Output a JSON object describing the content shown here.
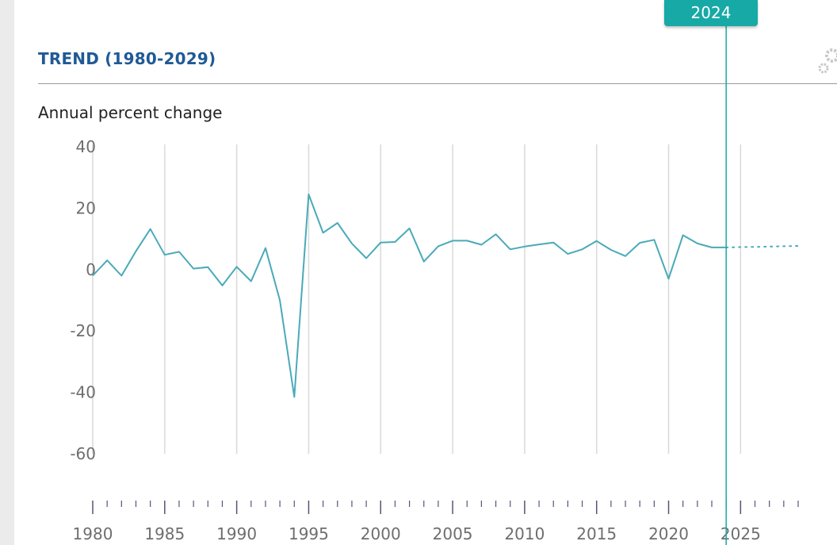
{
  "header": {
    "title": "TREND (1980-2029)",
    "subtitle": "Annual percent change",
    "selected_year": "2024",
    "settings_icon": "gear-icon"
  },
  "colors": {
    "line": "#4aaab8",
    "accent": "#17a9a6",
    "title": "#1f5a96",
    "grid": "#d9d9d9"
  },
  "chart_data": {
    "type": "line",
    "title": "TREND (1980-2029)",
    "ylabel": "Annual percent change",
    "xlabel": "",
    "ylim": [
      -60,
      40
    ],
    "xlim": [
      1980,
      2029
    ],
    "yticks": [
      "40",
      "20",
      "0",
      "-20",
      "-40",
      "-60"
    ],
    "xticks": [
      "1980",
      "1985",
      "1990",
      "1995",
      "2000",
      "2005",
      "2010",
      "2015",
      "2020",
      "2025"
    ],
    "marker_year": 2024,
    "series": [
      {
        "name": "",
        "x": [
          1980,
          1981,
          1982,
          1983,
          1984,
          1985,
          1986,
          1987,
          1988,
          1989,
          1990,
          1991,
          1992,
          1993,
          1994,
          1995,
          1996,
          1997,
          1998,
          1999,
          2000,
          2001,
          2002,
          2003,
          2004,
          2005,
          2006,
          2007,
          2008,
          2009,
          2010,
          2011,
          2012,
          2013,
          2014,
          2015,
          2016,
          2017,
          2018,
          2019,
          2020,
          2021,
          2022,
          2023,
          2024
        ],
        "values": [
          -2,
          3,
          -2,
          6,
          13.2,
          4.8,
          5.8,
          0.3,
          0.8,
          -5.2,
          0.9,
          -3.8,
          7,
          -10,
          -41.5,
          24.5,
          12,
          15.2,
          8.5,
          3.7,
          8.8,
          9,
          13.4,
          2.6,
          7.6,
          9.4,
          9.4,
          8.1,
          11.5,
          6.6,
          7.5,
          8.2,
          8.8,
          5.1,
          6.6,
          9.3,
          6.4,
          4.4,
          8.7,
          9.7,
          -3,
          11.2,
          8.5,
          7.2,
          7.2
        ]
      },
      {
        "name": "",
        "style": "dotted",
        "x": [
          2024,
          2025,
          2026,
          2027,
          2028,
          2029
        ],
        "values": [
          7.2,
          7.3,
          7.4,
          7.5,
          7.6,
          7.7
        ]
      }
    ]
  }
}
